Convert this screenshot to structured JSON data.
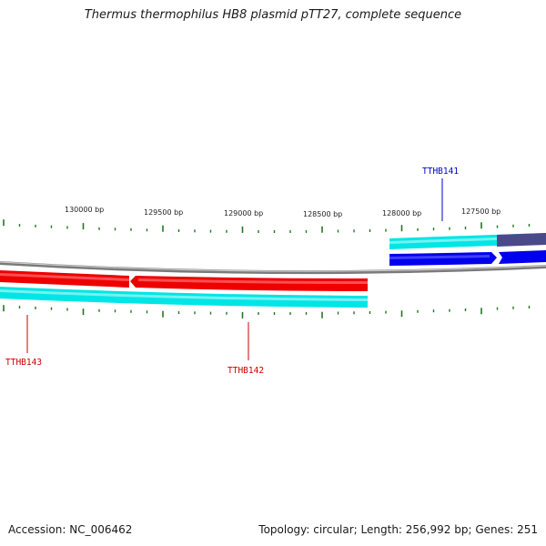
{
  "title": "Thermus thermophilus HB8 plasmid pTT27, complete sequence",
  "footer": {
    "accession": "Accession: NC_006462",
    "summary": "Topology: circular; Length: 256,992 bp; Genes: 251"
  },
  "scale_labels": [
    "130000 bp",
    "129500 bp",
    "129000 bp",
    "128500 bp",
    "128000 bp",
    "127500 bp"
  ],
  "genes": [
    {
      "name": "TTHB141",
      "strand": "plus",
      "color": "#0000cc"
    },
    {
      "name": "TTHB142",
      "strand": "minus",
      "color": "#cc0000"
    },
    {
      "name": "TTHB143",
      "strand": "minus",
      "color": "#cc0000"
    }
  ],
  "colors": {
    "backbone": "#888888",
    "tick": "#227722",
    "gene_plus": "#0000ee",
    "gene_minus": "#ff0000",
    "cds_feature": "#00eeee",
    "plus_dark": "#4a4a8a"
  }
}
